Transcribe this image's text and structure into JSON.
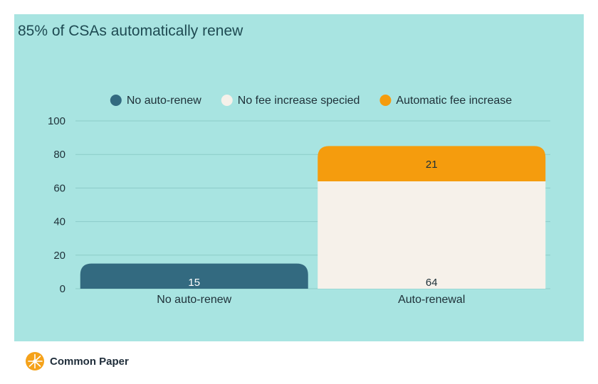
{
  "title": "85% of CSAs automatically renew",
  "brand": {
    "name": "Common Paper",
    "logo_icon": "sunburst-logo-icon",
    "logo_color": "#f5a21a"
  },
  "colors": {
    "background": "#a8e4e1",
    "grid": "#8ccbc8",
    "text": "#1e3038",
    "title": "#1e4a52"
  },
  "chart_data": {
    "type": "bar",
    "stacked": true,
    "title": "85% of CSAs automatically renew",
    "categories": [
      "No auto-renew",
      "Auto-renewal"
    ],
    "series": [
      {
        "name": "No auto-renew",
        "color": "#336a80",
        "values": [
          15,
          0
        ],
        "label_color": "#ffffff"
      },
      {
        "name": "No fee increase specied",
        "color": "#f6f1ea",
        "values": [
          0,
          64
        ],
        "label_color": "#1e3038"
      },
      {
        "name": "Automatic fee increase",
        "color": "#f59c0d",
        "values": [
          0,
          21
        ],
        "label_color": "#1e3038"
      }
    ],
    "ylim": [
      0,
      100
    ],
    "yticks": [
      "0",
      "20",
      "40",
      "60",
      "80",
      "100"
    ],
    "grid": true,
    "legend": "top-center"
  }
}
